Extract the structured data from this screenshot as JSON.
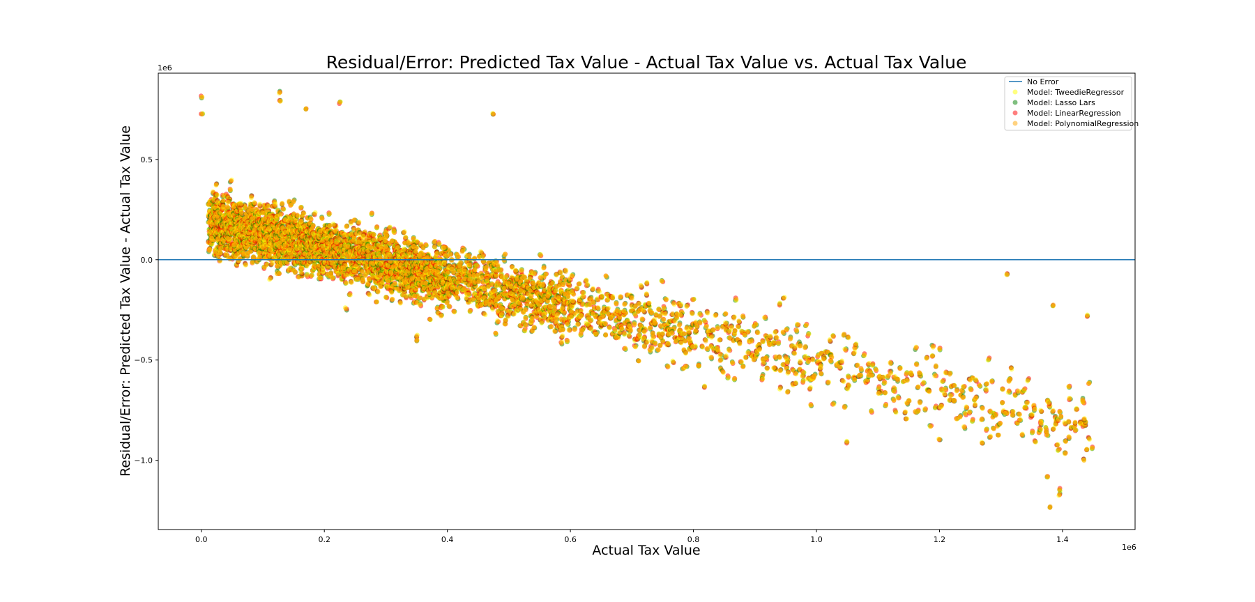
{
  "chart_data": {
    "type": "scatter",
    "title": "Residual/Error: Predicted Tax Value - Actual Tax Value vs. Actual Tax Value",
    "xlabel": "Actual Tax Value",
    "ylabel": "Residual/Error: Predicted Tax Value - Actual Tax Value",
    "x_offset_label": "1e6",
    "y_offset_label": "1e6",
    "xlim": [
      -70000,
      1518000
    ],
    "ylim": [
      -1345000,
      930000
    ],
    "xticks": [
      {
        "value": 0,
        "label": "0.0"
      },
      {
        "value": 200000,
        "label": "0.2"
      },
      {
        "value": 400000,
        "label": "0.4"
      },
      {
        "value": 600000,
        "label": "0.6"
      },
      {
        "value": 800000,
        "label": "0.8"
      },
      {
        "value": 1000000,
        "label": "1.0"
      },
      {
        "value": 1200000,
        "label": "1.2"
      },
      {
        "value": 1400000,
        "label": "1.4"
      }
    ],
    "yticks": [
      {
        "value": 500000,
        "label": "0.5"
      },
      {
        "value": 0,
        "label": "0.0"
      },
      {
        "value": -500000,
        "label": "−0.5"
      },
      {
        "value": -1000000,
        "label": "−1.0"
      }
    ],
    "grid": false,
    "legend_position": "top-right",
    "reference_line": {
      "name": "No Error",
      "y": 0,
      "color": "#1f77b4"
    },
    "series": [
      {
        "name": "Model: TweedieRegressor",
        "color": "#ffff00",
        "alpha": 0.5
      },
      {
        "name": "Model: Lasso Lars",
        "color": "#008000",
        "alpha": 0.5
      },
      {
        "name": "Model: LinearRegression",
        "color": "#ff0000",
        "alpha": 0.5
      },
      {
        "name": "Model: PolynomialRegression",
        "color": "#ffa500",
        "alpha": 0.5
      }
    ],
    "point_distribution": {
      "x_range": [
        0,
        1450000
      ],
      "trend": "residual decreases linearly from about +200000 at x=0 to about -800000 at x=1400000",
      "density": "very dense below x=600000, sparse above x=1000000"
    },
    "notable_points": [
      {
        "x": 1000,
        "y": 810000
      },
      {
        "x": 1000,
        "y": 725000
      },
      {
        "x": 128000,
        "y": 835000
      },
      {
        "x": 128000,
        "y": 790000
      },
      {
        "x": 170000,
        "y": 750000
      },
      {
        "x": 225000,
        "y": 785000
      },
      {
        "x": 475000,
        "y": 725000
      },
      {
        "x": 350000,
        "y": -380000
      },
      {
        "x": 350000,
        "y": -405000
      },
      {
        "x": 235000,
        "y": -245000
      },
      {
        "x": 285000,
        "y": -210000
      },
      {
        "x": 1050000,
        "y": -910000
      },
      {
        "x": 1200000,
        "y": -895000
      },
      {
        "x": 1375000,
        "y": -1080000
      },
      {
        "x": 1380000,
        "y": -1230000
      },
      {
        "x": 1395000,
        "y": -1170000
      },
      {
        "x": 1395000,
        "y": -1145000
      },
      {
        "x": 1435000,
        "y": -1000000
      },
      {
        "x": 1440000,
        "y": -280000
      },
      {
        "x": 1310000,
        "y": -75000
      },
      {
        "x": 1385000,
        "y": -225000
      }
    ]
  }
}
